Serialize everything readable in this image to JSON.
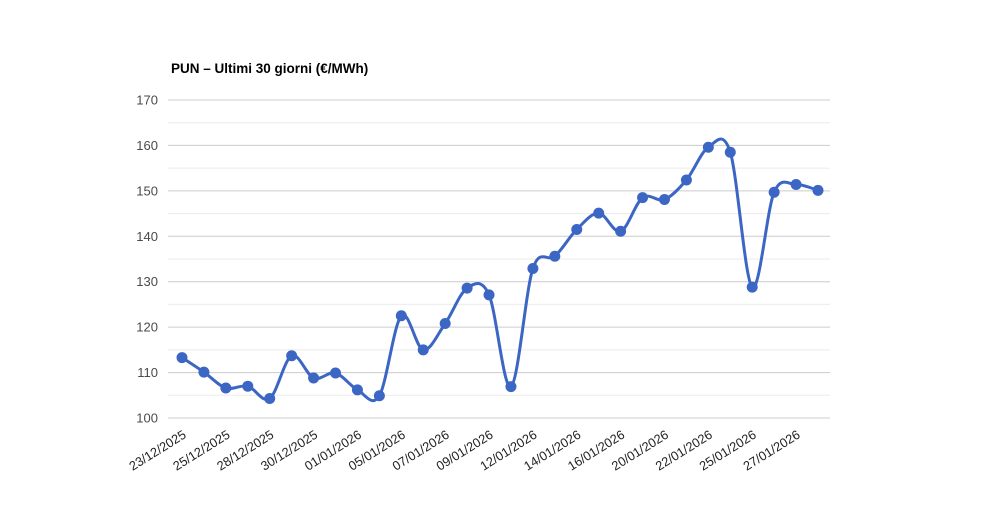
{
  "chart_data": {
    "type": "line",
    "title": "PUN – Ultimi 30 giorni (€/MWh)",
    "unit": "€/MWh",
    "smooth": true,
    "legend": "none",
    "grid": "horizontal-only",
    "n_points": 30,
    "label_step": 2,
    "x_tick_labels": [
      "23/12/2025",
      "25/12/2025",
      "28/12/2025",
      "30/12/2025",
      "01/01/2026",
      "05/01/2026",
      "07/01/2026",
      "09/01/2026",
      "12/01/2026",
      "14/01/2026",
      "16/01/2026",
      "20/01/2026",
      "22/01/2026",
      "25/01/2026",
      "27/01/2026"
    ],
    "values": [
      113.3,
      110.1,
      106.6,
      107.0,
      104.3,
      113.7,
      108.8,
      109.9,
      106.2,
      104.9,
      122.5,
      115.0,
      120.8,
      128.6,
      127.1,
      106.9,
      132.9,
      135.6,
      141.5,
      145.1,
      141.1,
      148.5,
      148.1,
      152.4,
      159.6,
      158.5,
      128.8,
      149.7,
      151.4,
      150.1
    ],
    "ylim": [
      100,
      170
    ],
    "y_major_step": 10,
    "y_minor_step": 5,
    "y_tick_labels": [
      "100",
      "110",
      "120",
      "130",
      "140",
      "150",
      "160",
      "170"
    ],
    "line_color": "#3B66C4",
    "point_color": "#3B66C4",
    "major_grid_color": "#CCCCCC",
    "minor_grid_color": "#EBEBEB",
    "y_label_color": "#4A4A4A",
    "x_label_color": "#1F1F1F",
    "background_color": "#FFFFFF"
  }
}
